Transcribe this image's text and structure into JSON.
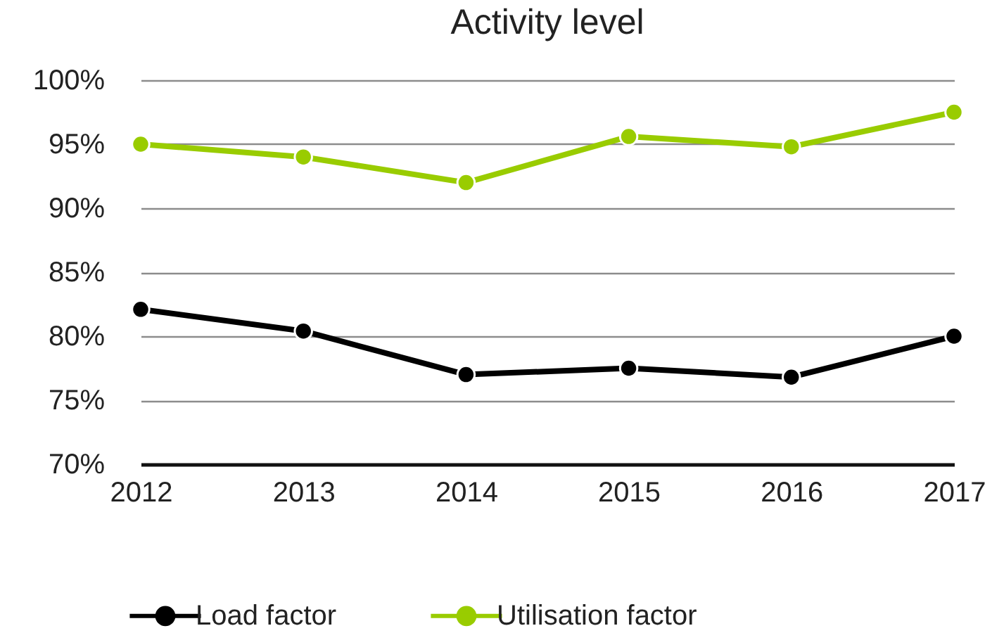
{
  "chart_data": {
    "type": "line",
    "title": "Activity level",
    "categories": [
      "2012",
      "2013",
      "2014",
      "2015",
      "2016",
      "2017"
    ],
    "series": [
      {
        "name": "Load factor",
        "color": "#000000",
        "values": [
          82.1,
          80.4,
          77.0,
          77.5,
          76.8,
          80.0
        ]
      },
      {
        "name": "Utilisation factor",
        "color": "#99cc00",
        "values": [
          95.0,
          94.0,
          92.0,
          95.6,
          94.8,
          97.5
        ]
      }
    ],
    "ylim": [
      70,
      100
    ],
    "yticks": [
      {
        "value": 70,
        "label": "70%"
      },
      {
        "value": 75,
        "label": "75%"
      },
      {
        "value": 80,
        "label": "80%"
      },
      {
        "value": 85,
        "label": "85%"
      },
      {
        "value": 90,
        "label": "90%"
      },
      {
        "value": 95,
        "label": "95%"
      },
      {
        "value": 100,
        "label": "100%"
      }
    ],
    "grid": "y",
    "legend": "bottom",
    "marker": "circle",
    "line_style": "solid"
  }
}
